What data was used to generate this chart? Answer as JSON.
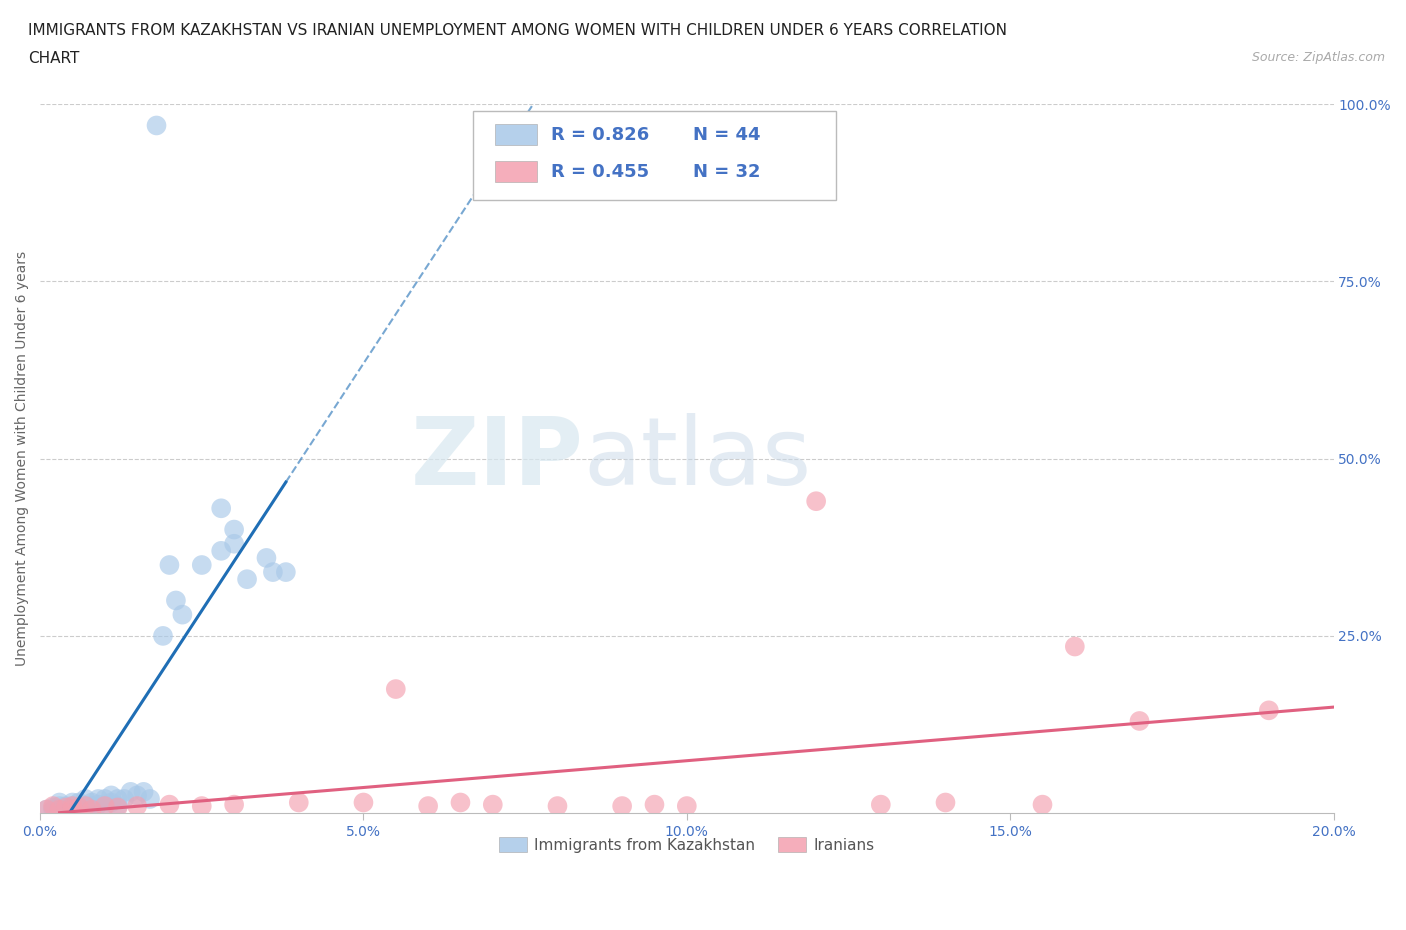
{
  "title_line1": "IMMIGRANTS FROM KAZAKHSTAN VS IRANIAN UNEMPLOYMENT AMONG WOMEN WITH CHILDREN UNDER 6 YEARS CORRELATION",
  "title_line2": "CHART",
  "source_text": "Source: ZipAtlas.com",
  "ylabel": "Unemployment Among Women with Children Under 6 years",
  "xlim": [
    0.0,
    0.2
  ],
  "ylim": [
    0.0,
    1.0
  ],
  "xticks": [
    0.0,
    0.05,
    0.1,
    0.15,
    0.2
  ],
  "yticks_right": [
    0.0,
    0.25,
    0.5,
    0.75,
    1.0
  ],
  "ytick_labels_right": [
    "",
    "25.0%",
    "50.0%",
    "75.0%",
    "100.0%"
  ],
  "xtick_labels": [
    "0.0%",
    "5.0%",
    "10.0%",
    "15.0%",
    "20.0%"
  ],
  "legend_entries": [
    {
      "label": "Immigrants from Kazakhstan",
      "color": "#a8c8e8",
      "R": "0.826",
      "N": "44"
    },
    {
      "label": "Iranians",
      "color": "#f4a0b0",
      "R": "0.455",
      "N": "32"
    }
  ],
  "watermark_zip": "ZIP",
  "watermark_atlas": "atlas",
  "background_color": "#ffffff",
  "grid_color": "#cccccc",
  "blue_scatter_x": [
    0.001,
    0.002,
    0.002,
    0.003,
    0.003,
    0.003,
    0.004,
    0.004,
    0.005,
    0.005,
    0.005,
    0.006,
    0.006,
    0.007,
    0.007,
    0.008,
    0.008,
    0.009,
    0.009,
    0.01,
    0.01,
    0.011,
    0.011,
    0.012,
    0.012,
    0.013,
    0.014,
    0.015,
    0.016,
    0.017,
    0.018,
    0.019,
    0.02,
    0.021,
    0.022,
    0.025,
    0.028,
    0.03,
    0.032,
    0.035,
    0.036,
    0.038,
    0.03,
    0.028
  ],
  "blue_scatter_y": [
    0.005,
    0.005,
    0.008,
    0.005,
    0.01,
    0.015,
    0.005,
    0.01,
    0.005,
    0.01,
    0.015,
    0.008,
    0.015,
    0.01,
    0.02,
    0.01,
    0.015,
    0.012,
    0.02,
    0.01,
    0.02,
    0.015,
    0.025,
    0.01,
    0.02,
    0.02,
    0.03,
    0.025,
    0.03,
    0.02,
    0.97,
    0.25,
    0.35,
    0.3,
    0.28,
    0.35,
    0.37,
    0.38,
    0.33,
    0.36,
    0.34,
    0.34,
    0.4,
    0.43
  ],
  "pink_scatter_x": [
    0.001,
    0.002,
    0.003,
    0.004,
    0.005,
    0.005,
    0.006,
    0.007,
    0.008,
    0.01,
    0.012,
    0.015,
    0.02,
    0.025,
    0.03,
    0.04,
    0.05,
    0.055,
    0.06,
    0.065,
    0.07,
    0.08,
    0.09,
    0.095,
    0.1,
    0.12,
    0.13,
    0.14,
    0.155,
    0.16,
    0.17,
    0.19
  ],
  "pink_scatter_y": [
    0.005,
    0.01,
    0.005,
    0.008,
    0.01,
    0.005,
    0.008,
    0.01,
    0.005,
    0.01,
    0.008,
    0.01,
    0.012,
    0.01,
    0.012,
    0.015,
    0.015,
    0.175,
    0.01,
    0.015,
    0.012,
    0.01,
    0.01,
    0.012,
    0.01,
    0.44,
    0.012,
    0.015,
    0.012,
    0.235,
    0.13,
    0.145
  ],
  "blue_line_color": "#1f6eb5",
  "pink_line_color": "#e06080",
  "blue_scatter_color": "#a8c8e8",
  "pink_scatter_color": "#f4a0b0",
  "title_fontsize": 11,
  "axis_label_fontsize": 10,
  "tick_fontsize": 10,
  "tick_color": "#4472c4",
  "legend_fontsize": 13
}
